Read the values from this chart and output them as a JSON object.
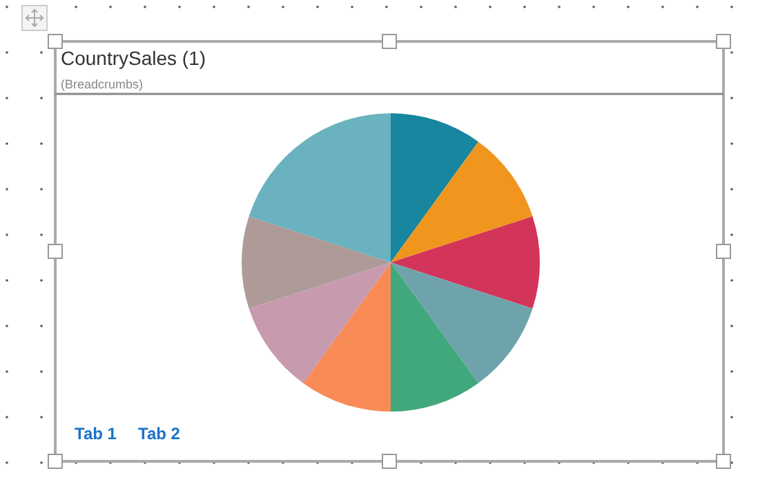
{
  "chart_data": {
    "type": "pie",
    "title": "CountrySales (1)",
    "subtitle": "(Breadcrumbs)",
    "annotations": [
      "Tab 1",
      "Tab 2"
    ],
    "categories": [
      null,
      null,
      null,
      null,
      null,
      null,
      null,
      null,
      null
    ],
    "values": [
      10,
      10,
      10,
      10,
      10,
      10,
      10,
      10,
      20
    ],
    "colors": [
      "#17869e",
      "#f0961e",
      "#d3345a",
      "#6fa3ac",
      "#41a87d",
      "#f98b57",
      "#c89aae",
      "#ae9a96",
      "#6ab2bf"
    ]
  }
}
